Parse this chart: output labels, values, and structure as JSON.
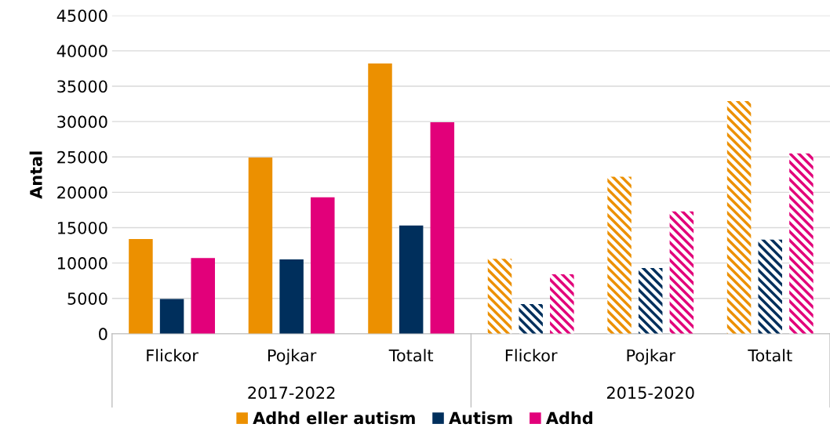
{
  "chart_data": {
    "type": "bar",
    "ylabel": "Antal",
    "categories": [
      "Flickor",
      "Pojkar",
      "Totalt",
      "Flickor",
      "Pojkar",
      "Totalt"
    ],
    "annotations": [
      "2017-2022",
      "2015-2020"
    ],
    "series": [
      {
        "name": "Adhd eller autism",
        "color": "#ec9000",
        "values": [
          13400,
          24900,
          38200,
          10600,
          22200,
          32900
        ]
      },
      {
        "name": "Autism",
        "color": "#002f5c",
        "values": [
          4900,
          10500,
          15300,
          4200,
          9300,
          13300
        ]
      },
      {
        "name": "Adhd",
        "color": "#e2007a",
        "values": [
          10700,
          19300,
          29900,
          8400,
          17300,
          25500
        ]
      }
    ],
    "ylim": [
      0,
      45000
    ],
    "yticks": [
      0,
      5000,
      10000,
      15000,
      20000,
      25000,
      30000,
      35000,
      40000,
      45000
    ],
    "grid": "y",
    "legend": "bottom"
  }
}
